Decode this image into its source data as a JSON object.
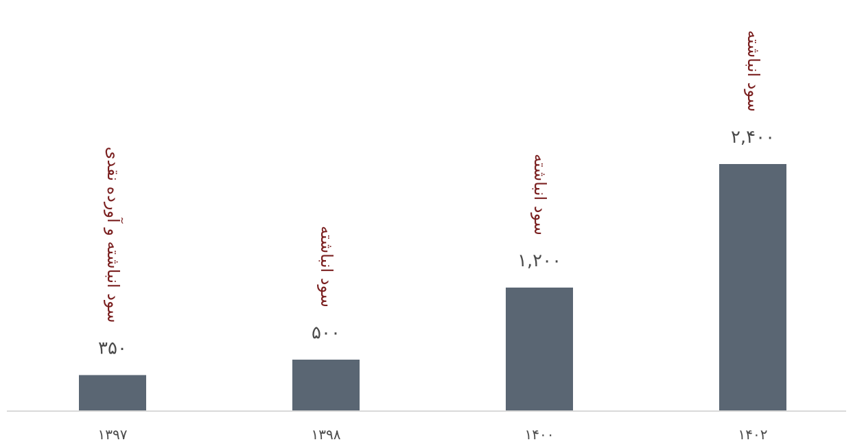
{
  "chart_data": {
    "type": "bar",
    "categories": [
      "۱۳۹۷",
      "۱۳۹۸",
      "۱۴۰۰",
      "۱۴۰۲"
    ],
    "values": [
      350,
      500,
      1200,
      2400
    ],
    "value_labels": [
      "۳۵۰",
      "۵۰۰",
      "۱,۲۰۰",
      "۲,۴۰۰"
    ],
    "annotations": [
      "سود انباشته و آورده نقدی",
      "سود انباشته",
      "سود انباشته",
      "سود انباشته"
    ],
    "title": "",
    "xlabel": "",
    "ylabel": "",
    "ylim": [
      0,
      2400
    ],
    "grid": false,
    "legend": "none",
    "colors": {
      "bar": "#5a6673",
      "axis": "#d9d9d9",
      "value_text": "#4a4a4a",
      "tick_text": "#4a4a4a",
      "annotation_text": "#7a1f1f"
    }
  }
}
